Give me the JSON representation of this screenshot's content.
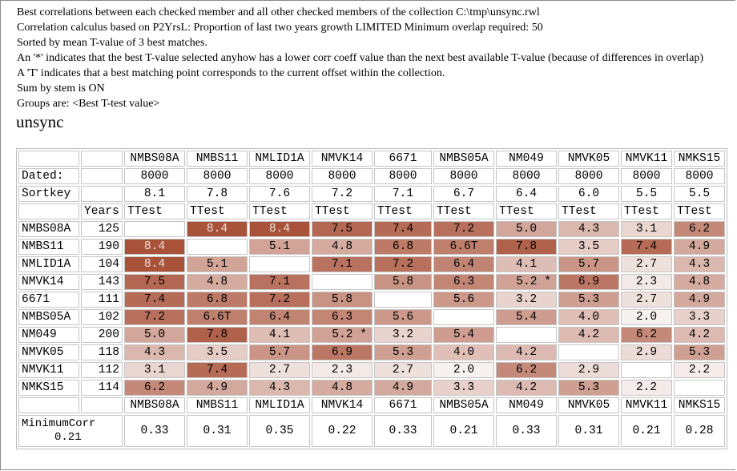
{
  "header_lines": [
    "Best correlations between each checked member and all other checked members of the collection C:\\tmp\\unsync.rwl",
    "Correlation calculus based on P2YrsL: Proportion of last two years growth LIMITED Minimum overlap required: 50",
    "Sorted by mean T-value of 3 best matches.",
    "An '*' indicates that the best T-value selected anyhow has a lower corr coeff value than the next best available T-value (because of differences in overlap)",
    "A 'T' indicates that a best matching point corresponds to the current offset within the collection.",
    "Sum by stem is ON",
    "Groups are: <Best T-test value>"
  ],
  "title": "unsync",
  "members": [
    "NMBS08A",
    "NMBS11",
    "NMLID1A",
    "NMVK14",
    "6671",
    "NMBS05A",
    "NM049",
    "NMVK05",
    "NMVK11",
    "NMKS15"
  ],
  "dated_label": "Dated:",
  "dated": [
    "8000",
    "8000",
    "8000",
    "8000",
    "8000",
    "8000",
    "8000",
    "8000",
    "8000",
    "8000"
  ],
  "sortkey_label": "Sortkey",
  "sortkey": [
    "8.1",
    "7.8",
    "7.6",
    "7.2",
    "7.1",
    "6.7",
    "6.4",
    "6.0",
    "5.5",
    "5.5"
  ],
  "years_label": "Years",
  "ttest_label": "TTest",
  "years": [
    "125",
    "190",
    "104",
    "143",
    "111",
    "102",
    "200",
    "118",
    "112",
    "114"
  ],
  "matrix": [
    [
      "",
      "8.4",
      "8.4",
      "7.5",
      "7.4",
      "7.2",
      "5.0",
      "4.3",
      "3.1",
      "6.2"
    ],
    [
      "8.4",
      "",
      "5.1",
      "4.8",
      "6.8",
      "6.6T",
      "7.8",
      "3.5",
      "7.4",
      "4.9"
    ],
    [
      "8.4",
      "5.1",
      "",
      "7.1",
      "7.2",
      "6.4",
      "4.1",
      "5.7",
      "2.7",
      "4.3"
    ],
    [
      "7.5",
      "4.8",
      "7.1",
      "",
      "5.8",
      "6.3",
      "5.2 *",
      "6.9",
      "2.3",
      "4.8"
    ],
    [
      "7.4",
      "6.8",
      "7.2",
      "5.8",
      "",
      "5.6",
      "3.2",
      "5.3",
      "2.7",
      "4.9"
    ],
    [
      "7.2",
      "6.6T",
      "6.4",
      "6.3",
      "5.6",
      "",
      "5.4",
      "4.0",
      "2.0",
      "3.3"
    ],
    [
      "5.0",
      "7.8",
      "4.1",
      "5.2 *",
      "3.2",
      "5.4",
      "",
      "4.2",
      "6.2",
      "4.2"
    ],
    [
      "4.3",
      "3.5",
      "5.7",
      "6.9",
      "5.3",
      "4.0",
      "4.2",
      "",
      "2.9",
      "5.3"
    ],
    [
      "3.1",
      "7.4",
      "2.7",
      "2.3",
      "2.7",
      "2.0",
      "6.2",
      "2.9",
      "",
      "2.2"
    ],
    [
      "6.2",
      "4.9",
      "4.3",
      "4.8",
      "4.9",
      "3.3",
      "4.2",
      "5.3",
      "2.2",
      ""
    ]
  ],
  "mincorr_label_1": "MinimumCorr",
  "mincorr_label_2": "0.21",
  "mincorr": [
    "0.33",
    "0.31",
    "0.35",
    "0.22",
    "0.33",
    "0.21",
    "0.33",
    "0.31",
    "0.21",
    "0.28"
  ],
  "colors": {
    "low": "#f7f1ef",
    "high": "#a9523a",
    "text_dark": "#000000",
    "text_light": "#ece2dc"
  }
}
